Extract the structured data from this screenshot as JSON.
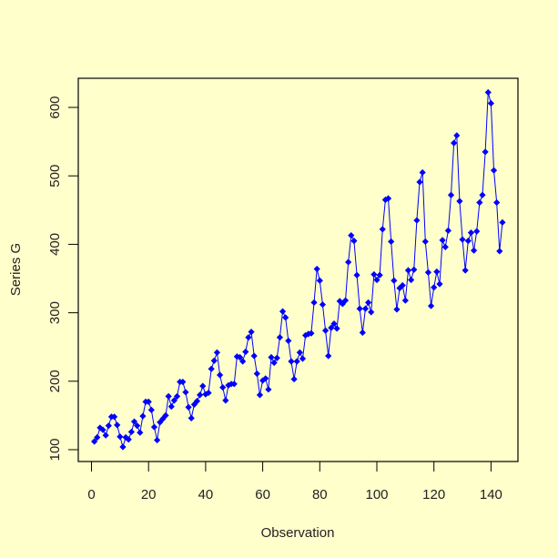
{
  "chart_data": {
    "type": "line",
    "title": "",
    "xlabel": "Observation",
    "ylabel": "Series G",
    "xlim": [
      0,
      148
    ],
    "ylim": [
      85,
      640
    ],
    "x_ticks": [
      0,
      20,
      40,
      60,
      80,
      100,
      120,
      140
    ],
    "y_ticks": [
      100,
      200,
      300,
      400,
      500,
      600
    ],
    "grid": false,
    "legend": null,
    "marker": "filled-diamond",
    "colors": {
      "series": "#0000FF",
      "background": "#FFFFCC",
      "axis": "#000000"
    },
    "series": [
      {
        "name": "Series G",
        "values": [
          112,
          118,
          132,
          129,
          121,
          135,
          148,
          148,
          136,
          119,
          104,
          118,
          115,
          126,
          141,
          135,
          125,
          149,
          170,
          170,
          158,
          133,
          114,
          140,
          145,
          150,
          178,
          163,
          172,
          178,
          199,
          199,
          184,
          162,
          146,
          166,
          171,
          180,
          193,
          181,
          183,
          218,
          230,
          242,
          209,
          191,
          172,
          194,
          196,
          196,
          236,
          235,
          229,
          243,
          264,
          272,
          237,
          211,
          180,
          201,
          204,
          188,
          235,
          227,
          234,
          264,
          302,
          293,
          259,
          229,
          203,
          229,
          242,
          233,
          267,
          269,
          270,
          315,
          364,
          347,
          312,
          274,
          237,
          278,
          284,
          277,
          317,
          313,
          318,
          374,
          413,
          405,
          355,
          306,
          271,
          306,
          315,
          301,
          356,
          348,
          355,
          422,
          465,
          467,
          404,
          347,
          305,
          336,
          340,
          318,
          362,
          348,
          363,
          435,
          491,
          505,
          404,
          359,
          310,
          337,
          360,
          342,
          406,
          396,
          420,
          472,
          548,
          559,
          463,
          407,
          362,
          405,
          417,
          391,
          419,
          461,
          472,
          535,
          622,
          606,
          508,
          461,
          390,
          432
        ]
      }
    ]
  }
}
